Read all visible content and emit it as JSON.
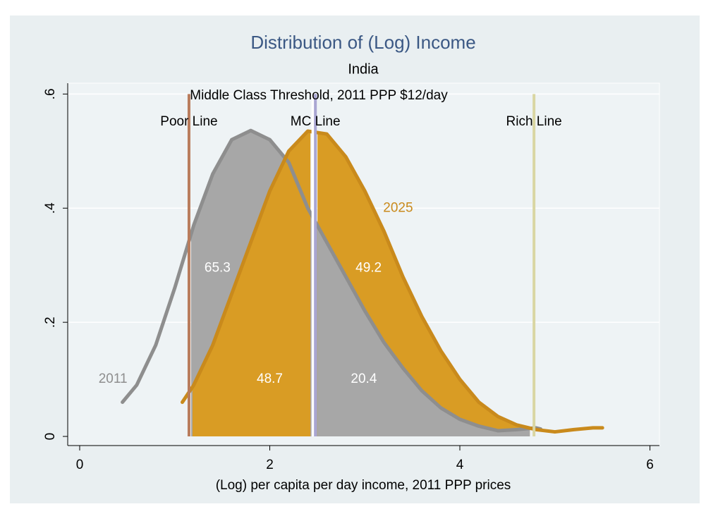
{
  "chart_data": {
    "type": "density",
    "title": "Distribution of (Log) Income",
    "subtitle": "India",
    "x_label": "(Log) per capita per day income, 2011 PPP prices",
    "xlim": [
      -0.126,
      6.1
    ],
    "ylim": [
      -0.016,
      0.619
    ],
    "xticks": [
      0,
      2,
      4,
      6
    ],
    "yticks": [
      0,
      {
        "value": 0.2,
        "label": ".2"
      },
      {
        "value": 0.4,
        "label": ".4"
      },
      {
        "value": 0.6,
        "label": ".6"
      }
    ],
    "grid": true,
    "series": [
      {
        "name": "2011",
        "color": "#8e8e8e",
        "fill": "#a7a7a7",
        "x": [
          0.45,
          0.6,
          0.8,
          1.0,
          1.2,
          1.4,
          1.6,
          1.8,
          2.0,
          2.2,
          2.4,
          2.6,
          2.8,
          3.0,
          3.2,
          3.4,
          3.6,
          3.8,
          4.0,
          4.2,
          4.4,
          4.6,
          4.8,
          4.85
        ],
        "values": [
          0.06,
          0.09,
          0.16,
          0.26,
          0.37,
          0.46,
          0.52,
          0.536,
          0.52,
          0.48,
          0.4,
          0.34,
          0.28,
          0.22,
          0.165,
          0.12,
          0.08,
          0.05,
          0.03,
          0.018,
          0.01,
          0.012,
          0.015,
          0.013
        ]
      },
      {
        "name": "2025",
        "color": "#c98a1c",
        "fill": "#d99c24",
        "x": [
          1.08,
          1.2,
          1.4,
          1.6,
          1.8,
          2.0,
          2.2,
          2.4,
          2.6,
          2.8,
          3.0,
          3.2,
          3.4,
          3.6,
          3.8,
          4.0,
          4.2,
          4.4,
          4.6,
          4.8,
          5.0,
          5.2,
          5.4,
          5.5
        ],
        "values": [
          0.06,
          0.09,
          0.16,
          0.25,
          0.34,
          0.43,
          0.5,
          0.535,
          0.53,
          0.49,
          0.43,
          0.36,
          0.28,
          0.21,
          0.15,
          0.1,
          0.06,
          0.035,
          0.02,
          0.012,
          0.008,
          0.012,
          0.015,
          0.015
        ]
      }
    ],
    "reference_lines": [
      {
        "label": "Poor Line",
        "x": 1.15,
        "color": "#b97c5c"
      },
      {
        "label": "MC Line",
        "x": 2.48,
        "color": "#a9a6d2"
      },
      {
        "label": "Rich Line",
        "x": 4.78,
        "color": "#d9d6a3"
      }
    ],
    "annotation": "Middle Class Threshold, 2011 PPP $12/day",
    "area_labels": [
      "65.3",
      "49.2",
      "48.7",
      "20.4"
    ]
  }
}
